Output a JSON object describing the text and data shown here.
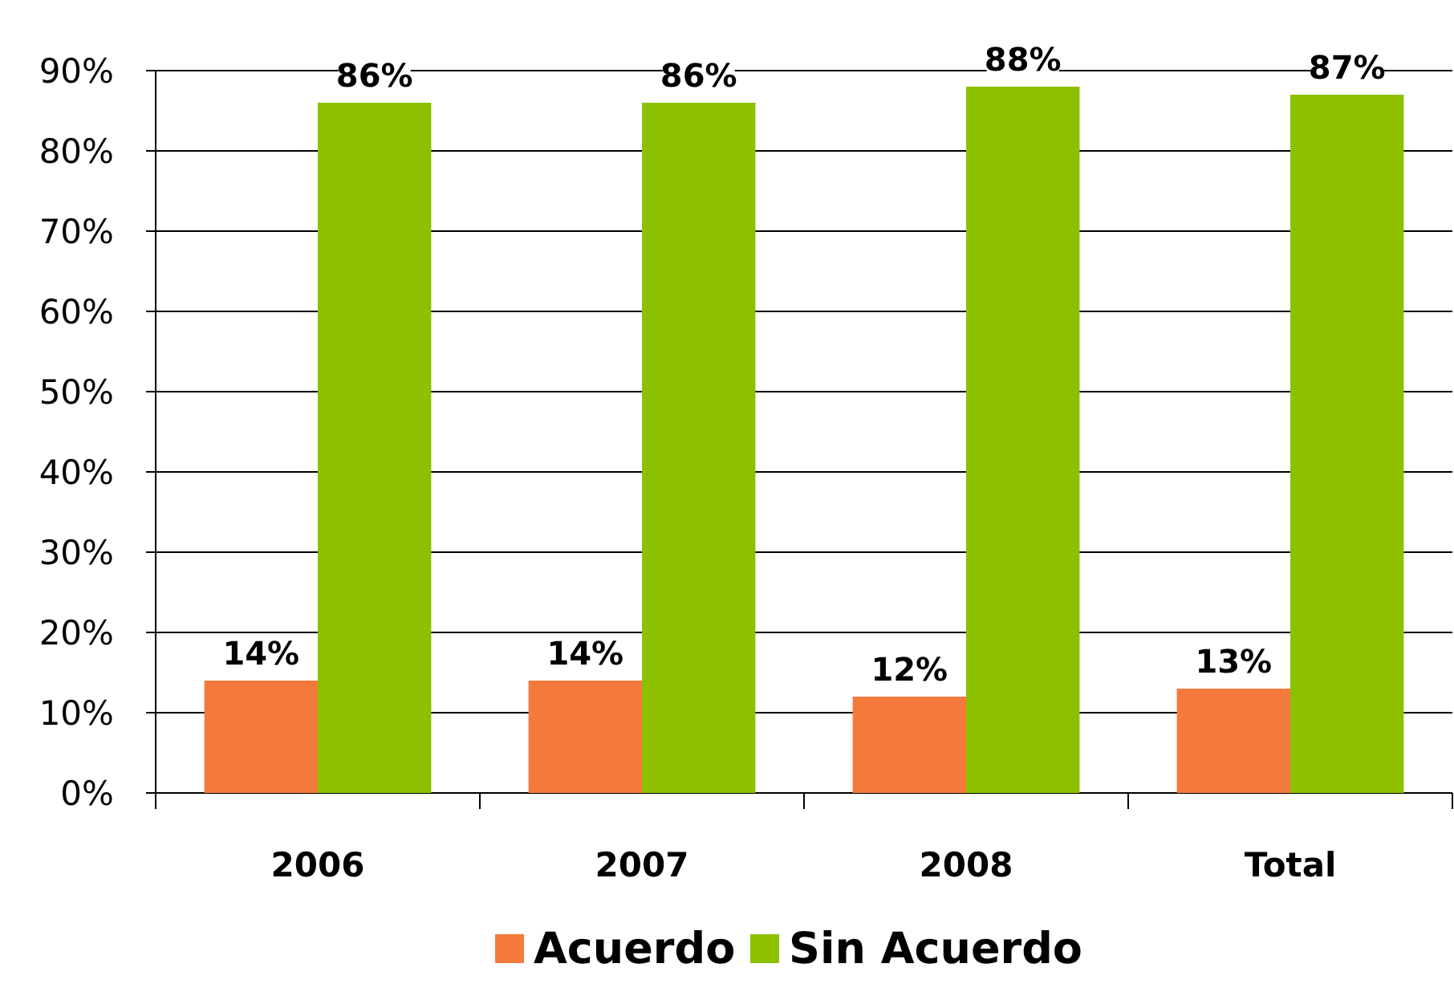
{
  "chart_data": {
    "type": "bar",
    "categories": [
      "2006",
      "2007",
      "2008",
      "Total"
    ],
    "series": [
      {
        "name": "Acuerdo",
        "color": "#f47a3c",
        "values": [
          14,
          14,
          12,
          13
        ]
      },
      {
        "name": "Sin Acuerdo",
        "color": "#8cc000",
        "values": [
          86,
          86,
          88,
          87
        ]
      }
    ],
    "ylim": [
      0,
      90
    ],
    "yticks": [
      {
        "value": 0,
        "label": "0%"
      },
      {
        "value": 10,
        "label": "10%"
      },
      {
        "value": 20,
        "label": "20%"
      },
      {
        "value": 30,
        "label": "30%"
      },
      {
        "value": 40,
        "label": "40%"
      },
      {
        "value": 50,
        "label": "50%"
      },
      {
        "value": 60,
        "label": "60%"
      },
      {
        "value": 70,
        "label": "70%"
      },
      {
        "value": 80,
        "label": "80%"
      },
      {
        "value": 90,
        "label": "90%"
      }
    ],
    "value_labels": [
      [
        "14%",
        "14%",
        "12%",
        "13%"
      ],
      [
        "86%",
        "86%",
        "88%",
        "87%"
      ]
    ],
    "grid": "y",
    "legend": "bottom"
  }
}
